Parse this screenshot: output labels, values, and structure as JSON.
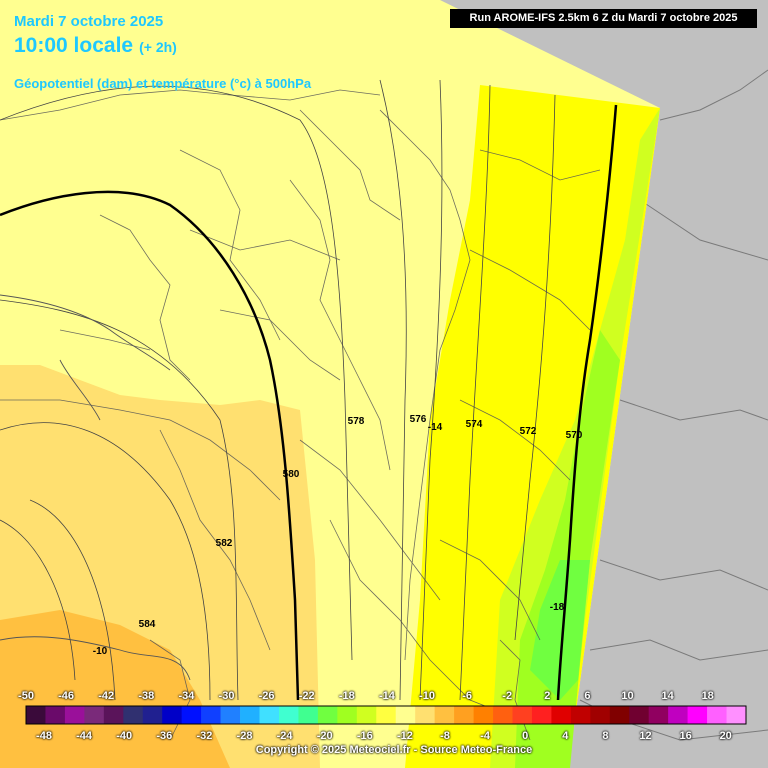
{
  "header": {
    "date": "Mardi 7 octobre 2025",
    "time": "10:00 locale",
    "lead": "(+ 2h)",
    "parameter": "Géopotentiel (dam) et température (°c) à 500hPa",
    "run": "Run AROME-IFS 2.5km 6 Z du Mardi 7 octobre 2025"
  },
  "contour_labels": [
    "584",
    "582",
    "580",
    "578",
    "576",
    "574",
    "572",
    "570"
  ],
  "temp_labels": [
    "-10",
    "-14",
    "-18"
  ],
  "scale": {
    "top": [
      "-50",
      "-46",
      "-42",
      "-38",
      "-34",
      "-30",
      "-26",
      "-22",
      "-18",
      "-14",
      "-10",
      "-6",
      "-2",
      "2",
      "6",
      "10",
      "14",
      "18"
    ],
    "bottom": [
      "-48",
      "-44",
      "-40",
      "-36",
      "-32",
      "-28",
      "-24",
      "-20",
      "-16",
      "-12",
      "-8",
      "-4",
      "0",
      "4",
      "8",
      "12",
      "16",
      "20"
    ],
    "colors": [
      "#3a0a3a",
      "#6a0a6a",
      "#9a109a",
      "#7a2a7a",
      "#5a145a",
      "#303070",
      "#202090",
      "#0000c8",
      "#0010ff",
      "#1040ff",
      "#2080ff",
      "#20b0ff",
      "#40e0ff",
      "#40ffd0",
      "#40ff90",
      "#70ff40",
      "#a0ff20",
      "#d0ff20",
      "#ffff40",
      "#ffff90",
      "#ffe070",
      "#ffc040",
      "#ffa020",
      "#ff8000",
      "#ff6010",
      "#ff4020",
      "#ff2020",
      "#e00000",
      "#c00000",
      "#a00000",
      "#800000",
      "#700030",
      "#900060",
      "#c000c0",
      "#ff00ff",
      "#ff60ff",
      "#ff90ff"
    ]
  },
  "copyright": "Copyright © 2025 Meteociel.fr - Source Meteo-France"
}
